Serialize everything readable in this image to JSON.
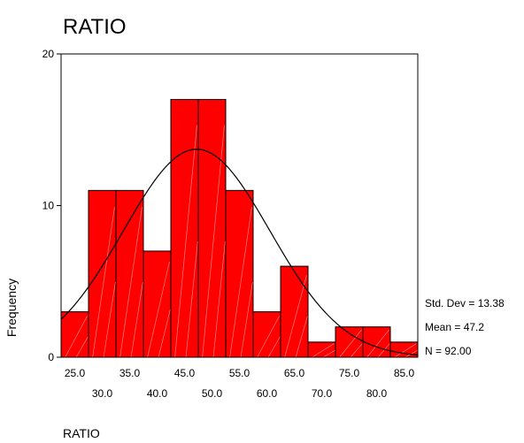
{
  "chart_data": {
    "type": "bar",
    "title": "RATIO",
    "xlabel": "RATIO",
    "ylabel": "Frequency",
    "bin_width": 5,
    "bin_start": 22.5,
    "bins": [
      25,
      30,
      35,
      40,
      45,
      50,
      55,
      60,
      65,
      70,
      75,
      80,
      85
    ],
    "values": [
      3,
      11,
      11,
      7,
      17,
      17,
      11,
      3,
      6,
      1,
      2,
      2,
      1
    ],
    "xlim": [
      22.5,
      87.5
    ],
    "ylim": [
      0,
      20
    ],
    "y_ticks": [
      "0",
      "10",
      "20"
    ],
    "x_ticks_row1": [
      "25.0",
      "35.0",
      "45.0",
      "55.0",
      "65.0",
      "75.0",
      "85.0"
    ],
    "x_ticks_row2": [
      "30.0",
      "40.0",
      "50.0",
      "60.0",
      "70.0",
      "80.0"
    ],
    "bar_color": "#ff0000",
    "normal_curve": {
      "mean": 47.2,
      "std_dev": 13.38,
      "n": 92
    },
    "stats": {
      "std_dev_label": "Std. Dev = 13.38",
      "mean_label": "Mean = 47.2",
      "n_label": "N = 92.00"
    }
  }
}
